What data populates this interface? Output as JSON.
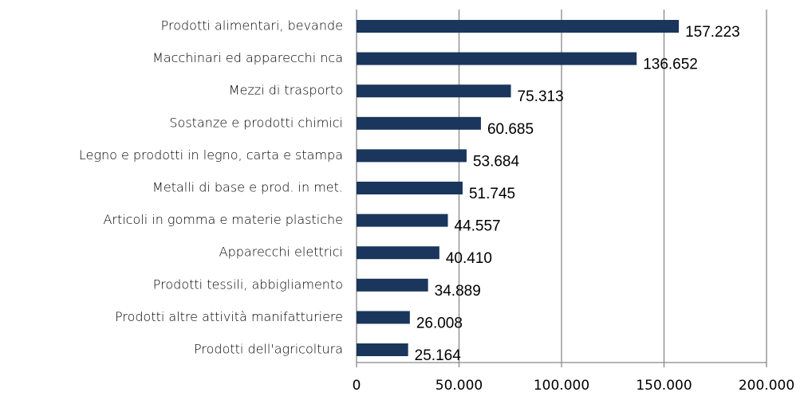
{
  "chart_data": {
    "type": "bar",
    "orientation": "horizontal",
    "categories": [
      "Prodotti alimentari, bevande",
      "Macchinari ed apparecchi nca",
      "Mezzi di trasporto",
      "Sostanze e prodotti chimici",
      "Legno e prodotti in legno, carta e stampa",
      "Metalli di base e prod. in met.",
      "Articoli in gomma e materie plastiche",
      "Apparecchi elettrici",
      "Prodotti tessili, abbigliamento",
      "Prodotti altre attività manifatturiere",
      "Prodotti dell'agricoltura"
    ],
    "values": [
      157223,
      136652,
      75313,
      60685,
      53684,
      51745,
      44557,
      40410,
      34889,
      26008,
      25164
    ],
    "value_labels": [
      "157.223",
      "136.652",
      "75.313",
      "60.685",
      "53.684",
      "51.745",
      "44.557",
      "40.410",
      "34.889",
      "26.008",
      "25.164"
    ],
    "color": "#1b365d",
    "xlim": [
      0,
      200000
    ],
    "xticks": [
      0,
      {
        "value": 50000,
        "label": "50.000"
      },
      {
        "value": 100000,
        "label": "100.000"
      },
      {
        "value": 150000,
        "label": "150.000"
      },
      {
        "value": 200000,
        "label": "200.000"
      }
    ],
    "grid": true
  }
}
